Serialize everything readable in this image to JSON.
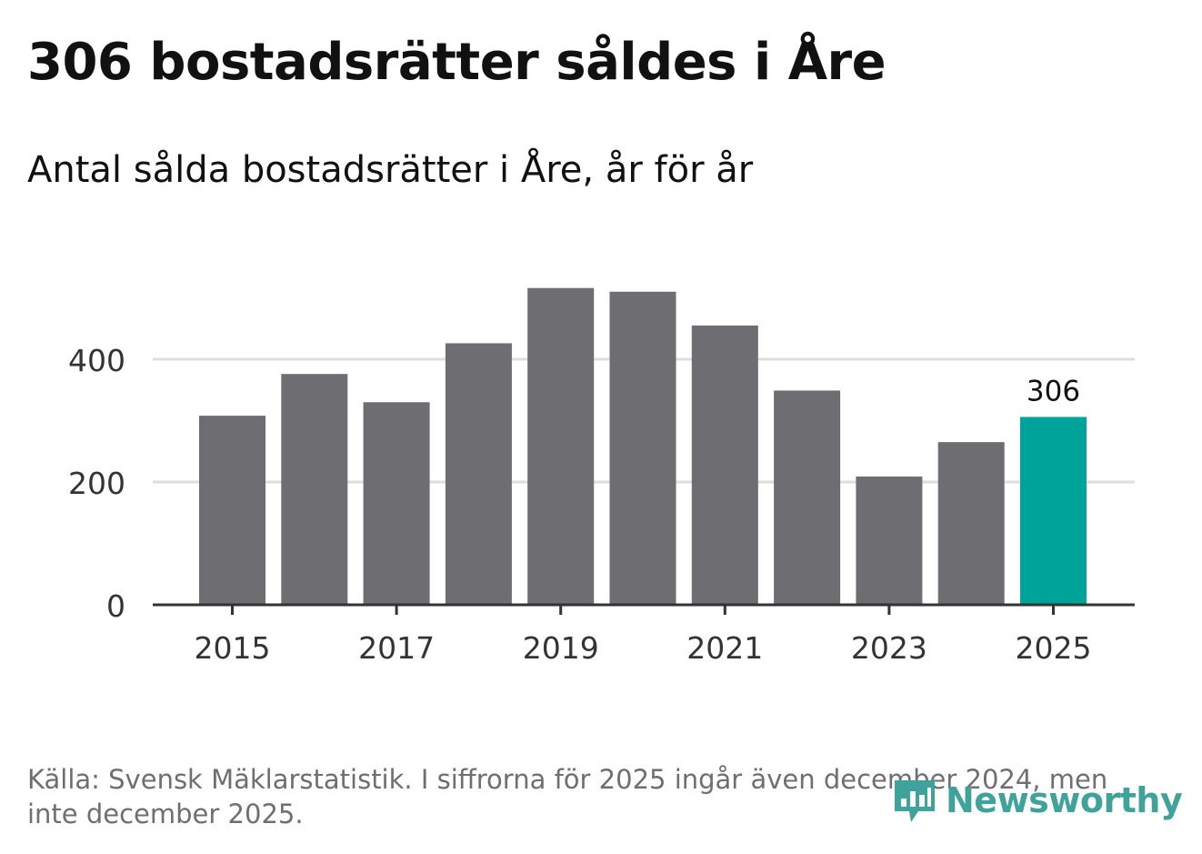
{
  "title": "306 bostadsrätter såldes i Åre",
  "subtitle": "Antal sålda bostadsrätter i Åre, år för år",
  "source": "Källa: Svensk Mäklarstatistik. I siffrorna för 2025 ingår även december 2024, men inte december 2025.",
  "brand": {
    "name": "Newsworthy",
    "icon": "bar-chart-speech-bubble-icon",
    "color": "#3fa39b"
  },
  "colors": {
    "bar": "#6e6d72",
    "highlight": "#00a39a",
    "grid": "#dddddd",
    "axis": "#333333",
    "text": "#333333"
  },
  "chart_data": {
    "type": "bar",
    "title": "306 bostadsrätter såldes i Åre",
    "subtitle": "Antal sålda bostadsrätter i Åre, år för år",
    "categories": [
      "2015",
      "2016",
      "2017",
      "2018",
      "2019",
      "2020",
      "2021",
      "2022",
      "2023",
      "2024",
      "2025"
    ],
    "values": [
      308,
      376,
      330,
      426,
      516,
      510,
      455,
      349,
      209,
      265,
      306
    ],
    "highlight_index": 10,
    "data_labels": [
      {
        "index": 10,
        "text": "306"
      }
    ],
    "x_tick_labels": [
      "2015",
      "2017",
      "2019",
      "2021",
      "2023",
      "2025"
    ],
    "y_ticks": [
      0,
      200,
      400
    ],
    "y_tick_labels": [
      "0",
      "200",
      "400"
    ],
    "ylim": [
      0,
      540
    ],
    "xlabel": "",
    "ylabel": "",
    "grid": true
  }
}
